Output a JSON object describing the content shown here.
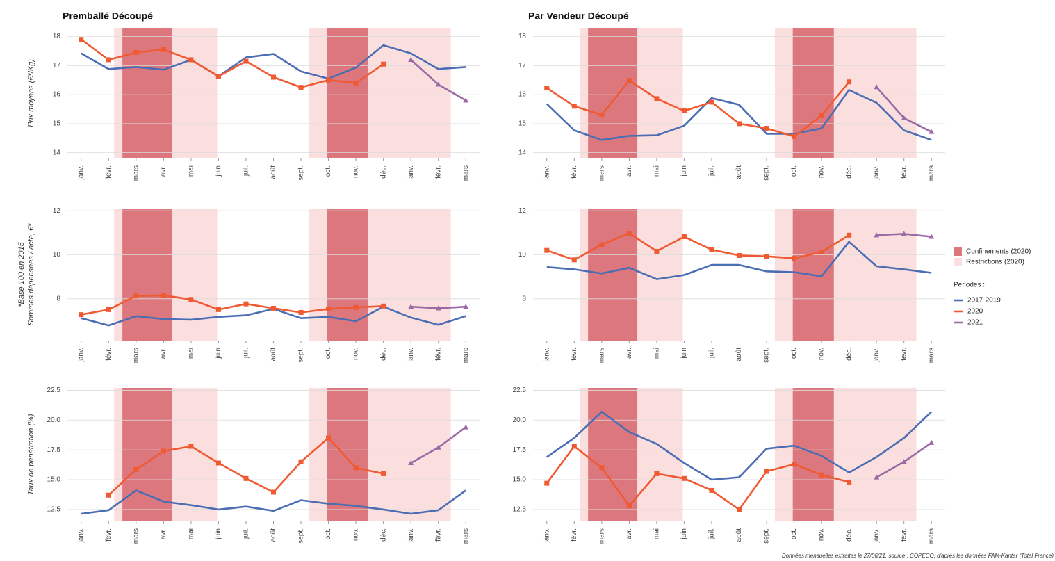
{
  "chart_data": [
    {
      "type": "line",
      "title": "Premballé Découpé",
      "ylabel": "Prix moyens (€*/Kg)",
      "categories": [
        "janv.",
        "févr.",
        "mars",
        "avr.",
        "mai",
        "juin",
        "juil.",
        "août",
        "sept.",
        "oct.",
        "nov.",
        "déc.",
        "janv.",
        "févr.",
        "mars"
      ],
      "ylim": [
        13.8,
        18.3
      ],
      "yticks": [
        14,
        15,
        16,
        17,
        18
      ],
      "grid": true,
      "series": [
        {
          "name": "2017-2019",
          "color": "#4a6db3",
          "values": [
            17.42,
            16.88,
            16.95,
            16.86,
            17.2,
            16.63,
            17.28,
            17.4,
            16.8,
            16.55,
            16.93,
            17.7,
            17.42,
            16.88,
            16.95
          ]
        },
        {
          "name": "2020",
          "color": "#ef5a32",
          "values": [
            17.9,
            17.2,
            17.45,
            17.55,
            17.2,
            16.63,
            17.15,
            16.6,
            16.25,
            16.5,
            16.4,
            17.05,
            null,
            null,
            null
          ]
        },
        {
          "name": "2021",
          "color": "#9b6aa6",
          "values": [
            null,
            null,
            null,
            null,
            null,
            null,
            null,
            null,
            null,
            null,
            null,
            null,
            17.2,
            16.35,
            15.8
          ]
        }
      ]
    },
    {
      "type": "line",
      "title": "Par Vendeur Découpé",
      "categories": [
        "janv.",
        "févr.",
        "mars",
        "avr.",
        "mai",
        "juin",
        "juil.",
        "août",
        "sept.",
        "oct.",
        "nov.",
        "déc.",
        "janv.",
        "févr.",
        "mars"
      ],
      "ylim": [
        13.8,
        18.3
      ],
      "yticks": [
        14,
        15,
        16,
        17,
        18
      ],
      "grid": true,
      "series": [
        {
          "name": "2017-2019",
          "color": "#4a6db3",
          "values": [
            15.68,
            14.77,
            14.44,
            14.58,
            14.6,
            14.93,
            15.88,
            15.65,
            14.65,
            14.65,
            14.84,
            16.16,
            15.72,
            14.77,
            14.44
          ]
        },
        {
          "name": "2020",
          "color": "#ef5a32",
          "values": [
            16.23,
            15.6,
            15.3,
            16.49,
            15.86,
            15.44,
            15.74,
            15.0,
            14.84,
            14.56,
            15.28,
            16.44,
            null,
            null,
            null
          ]
        },
        {
          "name": "2021",
          "color": "#9b6aa6",
          "values": [
            null,
            null,
            null,
            null,
            null,
            null,
            null,
            null,
            null,
            null,
            null,
            null,
            16.26,
            15.19,
            14.72
          ]
        }
      ]
    },
    {
      "type": "line",
      "ylabel": "Sommes dépensées / acte, €*",
      "ylabel_note": "*Base 100 en 2015",
      "categories": [
        "janv.",
        "févr.",
        "mars",
        "avr.",
        "mai",
        "juin",
        "juil.",
        "août",
        "sept.",
        "oct.",
        "nov.",
        "déc.",
        "janv.",
        "févr.",
        "mars"
      ],
      "ylim": [
        6.1,
        12.1
      ],
      "yticks": [
        8,
        10,
        12
      ],
      "grid": true,
      "series": [
        {
          "name": "2017-2019",
          "color": "#4a6db3",
          "values": [
            7.12,
            6.79,
            7.21,
            7.08,
            7.05,
            7.18,
            7.25,
            7.54,
            7.12,
            7.18,
            6.98,
            7.64,
            7.15,
            6.82,
            7.21
          ]
        },
        {
          "name": "2020",
          "color": "#ef5a32",
          "values": [
            7.28,
            7.51,
            8.13,
            8.16,
            7.97,
            7.51,
            7.77,
            7.57,
            7.38,
            7.54,
            7.61,
            7.67,
            null,
            null,
            null
          ]
        },
        {
          "name": "2021",
          "color": "#9b6aa6",
          "values": [
            null,
            null,
            null,
            null,
            null,
            null,
            null,
            null,
            null,
            null,
            null,
            null,
            7.64,
            7.57,
            7.64
          ]
        }
      ]
    },
    {
      "type": "line",
      "categories": [
        "janv.",
        "févr.",
        "mars",
        "avr.",
        "mai",
        "juin",
        "juil.",
        "août",
        "sept.",
        "oct.",
        "nov.",
        "déc.",
        "janv.",
        "févr.",
        "mars"
      ],
      "ylim": [
        6.1,
        12.1
      ],
      "yticks": [
        8,
        10,
        12
      ],
      "grid": true,
      "series": [
        {
          "name": "2017-2019",
          "color": "#4a6db3",
          "values": [
            9.44,
            9.34,
            9.15,
            9.41,
            8.89,
            9.08,
            9.54,
            9.54,
            9.25,
            9.21,
            9.02,
            10.59,
            9.48,
            9.34,
            9.18
          ]
        },
        {
          "name": "2020",
          "color": "#ef5a32",
          "values": [
            10.2,
            9.77,
            10.46,
            10.98,
            10.16,
            10.82,
            10.23,
            9.97,
            9.93,
            9.84,
            10.13,
            10.89,
            null,
            null,
            null
          ]
        },
        {
          "name": "2021",
          "color": "#9b6aa6",
          "values": [
            null,
            null,
            null,
            null,
            null,
            null,
            null,
            null,
            null,
            null,
            null,
            null,
            10.89,
            10.95,
            10.82
          ]
        }
      ]
    },
    {
      "type": "line",
      "ylabel": "Taux de pénétration (%)",
      "categories": [
        "janv.",
        "févr.",
        "mars",
        "avr.",
        "mai",
        "juin",
        "juil.",
        "août",
        "sept.",
        "oct.",
        "nov.",
        "déc.",
        "janv.",
        "févr.",
        "mars"
      ],
      "ylim": [
        11.5,
        22.7
      ],
      "yticks": [
        {
          "value": 12.5,
          "label": "12.5"
        },
        {
          "value": 15,
          "label": "15.0"
        },
        {
          "value": 17.5,
          "label": "17.5"
        },
        {
          "value": 20,
          "label": "20.0"
        },
        {
          "value": 22.5,
          "label": "22.5"
        }
      ],
      "grid": true,
      "series": [
        {
          "name": "2017-2019",
          "color": "#4a6db3",
          "values": [
            12.14,
            12.44,
            14.1,
            13.16,
            12.86,
            12.5,
            12.74,
            12.38,
            13.28,
            12.98,
            12.8,
            12.5,
            12.14,
            12.44,
            14.1
          ]
        },
        {
          "name": "2020",
          "color": "#ef5a32",
          "values": [
            null,
            13.7,
            15.85,
            17.4,
            17.8,
            16.4,
            15.1,
            13.95,
            16.5,
            18.5,
            16.0,
            15.5,
            null,
            null,
            null
          ]
        },
        {
          "name": "2021",
          "color": "#9b6aa6",
          "values": [
            null,
            null,
            null,
            null,
            null,
            null,
            null,
            null,
            null,
            null,
            null,
            null,
            16.4,
            17.7,
            19.4
          ]
        }
      ]
    },
    {
      "type": "line",
      "categories": [
        "janv.",
        "févr.",
        "mars",
        "avr.",
        "mai",
        "juin",
        "juil.",
        "août",
        "sept.",
        "oct.",
        "nov.",
        "déc.",
        "janv.",
        "févr.",
        "mars"
      ],
      "ylim": [
        11.5,
        22.7
      ],
      "yticks": [
        {
          "value": 12.5,
          "label": "12.5"
        },
        {
          "value": 15,
          "label": "15.0"
        },
        {
          "value": 17.5,
          "label": "17.5"
        },
        {
          "value": 20,
          "label": "20.0"
        },
        {
          "value": 22.5,
          "label": "22.5"
        }
      ],
      "grid": true,
      "series": [
        {
          "name": "2017-2019",
          "color": "#4a6db3",
          "values": [
            16.9,
            18.5,
            20.7,
            19.0,
            18.0,
            16.4,
            15.0,
            15.2,
            17.6,
            17.85,
            17.0,
            15.6,
            16.9,
            18.5,
            20.7
          ]
        },
        {
          "name": "2020",
          "color": "#ef5a32",
          "values": [
            14.7,
            17.8,
            16.0,
            12.8,
            15.5,
            15.1,
            14.1,
            12.5,
            15.7,
            16.3,
            15.4,
            14.8,
            null,
            null,
            null
          ]
        },
        {
          "name": "2021",
          "color": "#9b6aa6",
          "values": [
            null,
            null,
            null,
            null,
            null,
            null,
            null,
            null,
            null,
            null,
            null,
            null,
            15.2,
            16.5,
            18.1
          ]
        }
      ]
    }
  ],
  "periods": [
    {
      "name": "Confinements (2020)",
      "color": "#dd777e",
      "spans": [
        [
          1.5,
          3.3
        ],
        [
          8.95,
          10.45
        ]
      ]
    },
    {
      "name": "Restrictions (2020)",
      "color": "#fbdede",
      "spans": [
        [
          1.2,
          1.5
        ],
        [
          3.3,
          4.95
        ],
        [
          8.3,
          8.95
        ],
        [
          10.45,
          13.45
        ]
      ]
    }
  ],
  "legend_title": "Périodes :",
  "source": "Données mensuelles extraites le 27/06/21, source : COPECO, d'après les données FAM-Kantar (Total France)"
}
